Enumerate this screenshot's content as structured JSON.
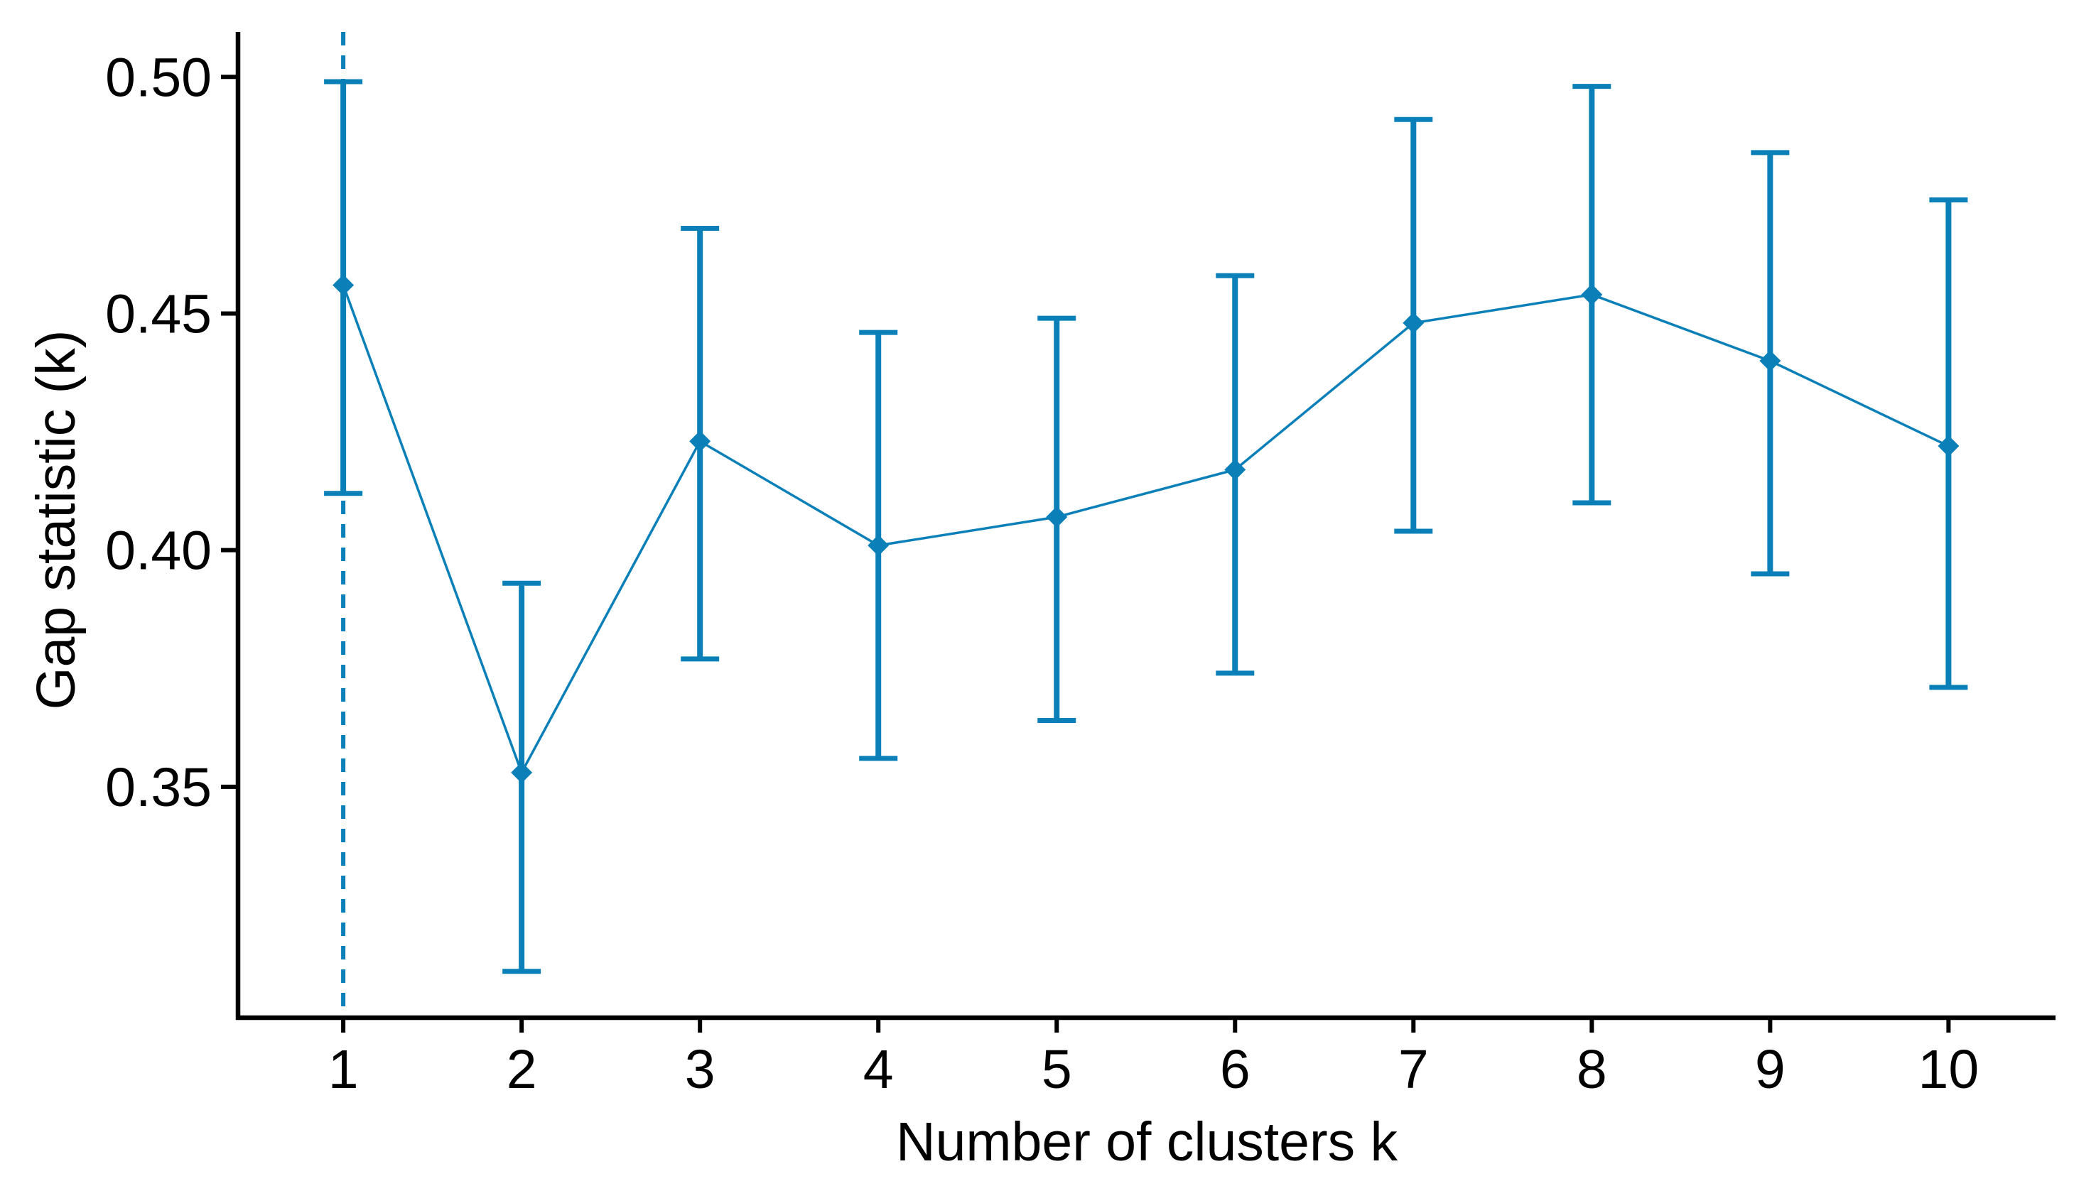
{
  "figure": {
    "background": "#ffffff"
  },
  "chart_data": {
    "type": "line",
    "title": "",
    "xlabel": "Number of clusters k",
    "ylabel": "Gap statistic (k)",
    "x": [
      1,
      2,
      3,
      4,
      5,
      6,
      7,
      8,
      9,
      10
    ],
    "x_tick_labels": [
      "1",
      "2",
      "3",
      "4",
      "5",
      "6",
      "7",
      "8",
      "9",
      "10"
    ],
    "series": [
      {
        "name": "Gap statistic",
        "values": [
          0.456,
          0.353,
          0.423,
          0.401,
          0.407,
          0.417,
          0.448,
          0.454,
          0.44,
          0.422
        ],
        "error_lower": [
          0.412,
          0.311,
          0.377,
          0.356,
          0.364,
          0.374,
          0.404,
          0.41,
          0.395,
          0.371
        ],
        "error_upper": [
          0.499,
          0.393,
          0.468,
          0.446,
          0.449,
          0.458,
          0.491,
          0.498,
          0.484,
          0.474
        ]
      }
    ],
    "optimal_k_line": {
      "x": 1,
      "style": "dashed"
    },
    "y_ticks": [
      0.5,
      0.45,
      0.4,
      0.35
    ],
    "y_tick_labels": [
      "0.50",
      "0.45",
      "0.40",
      "0.35"
    ],
    "xlim": [
      0.41,
      10.6
    ],
    "ylim": [
      0.3012,
      0.5095
    ],
    "grid": false,
    "legend": "none",
    "marker": "diamond",
    "colors": {
      "series": "#0b80b8",
      "axis": "#000000",
      "text": "#000000"
    }
  }
}
